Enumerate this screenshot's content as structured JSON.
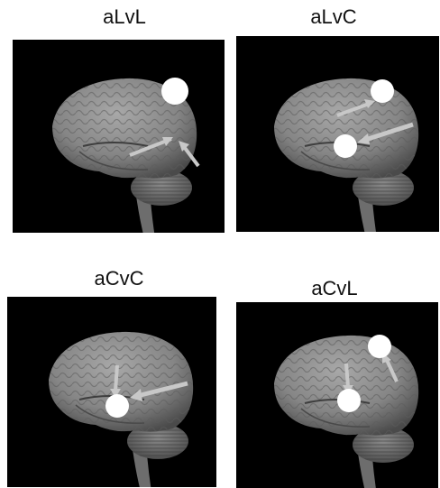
{
  "panels": [
    {
      "label": "aLvL"
    },
    {
      "label": "aLvC"
    },
    {
      "label": "aCvC"
    },
    {
      "label": "aCvL"
    }
  ],
  "colors": {
    "background": "#000000",
    "brain": "#8c8c8c",
    "brain_shadow": "#5a5a5a",
    "arrow": "#c8c8c8",
    "marker": "#ffffff"
  }
}
